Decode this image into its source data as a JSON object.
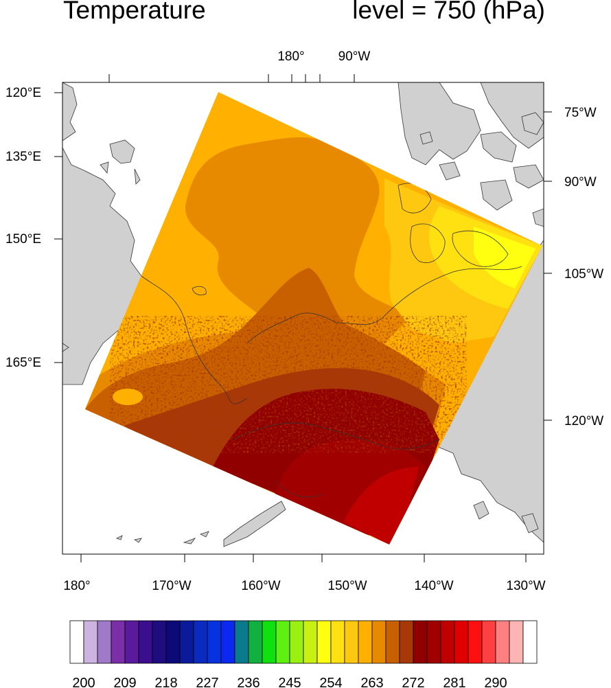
{
  "header": {
    "title_left": "Temperature",
    "title_right": "level = 750 (hPa)"
  },
  "axes": {
    "bottom_labels": [
      "180°",
      "170°W",
      "160°W",
      "150°W",
      "140°W",
      "130°W"
    ],
    "top_labels": [
      "180°",
      "90°W"
    ],
    "left_labels": [
      "120°E",
      "135°E",
      "150°E",
      "165°E"
    ],
    "right_labels": [
      "75°W",
      "90°W",
      "105°W",
      "120°W"
    ]
  },
  "colorbar": {
    "labels": [
      "200",
      "209",
      "218",
      "227",
      "236",
      "245",
      "254",
      "263",
      "272",
      "281",
      "290"
    ],
    "colors": [
      "#ffffff",
      "#cdb4e0",
      "#a07ac8",
      "#7a2fa8",
      "#5a1a9e",
      "#3a0e8e",
      "#1e0c80",
      "#0c0a78",
      "#0b1a9a",
      "#0a2ac0",
      "#0632e0",
      "#0a28f0",
      "#0b7a8c",
      "#11b040",
      "#10e010",
      "#5ef010",
      "#9af010",
      "#c8f010",
      "#ffff10",
      "#ffe010",
      "#ffc810",
      "#ffb000",
      "#e88a00",
      "#c86000",
      "#a83808",
      "#900000",
      "#a00000",
      "#c00000",
      "#e00000",
      "#ff1010",
      "#ff4040",
      "#ff8080",
      "#ffb4b4",
      "#ffffff"
    ]
  },
  "colors": {
    "land": "#d0d0d0",
    "coast": "#333333"
  }
}
